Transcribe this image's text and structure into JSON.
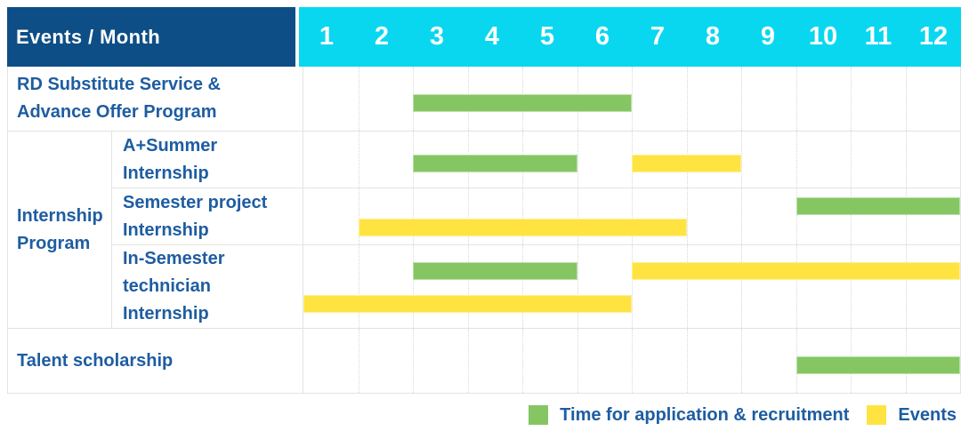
{
  "title_cell": "Events / Month",
  "colors": {
    "header_bg": "#0E4E86",
    "month_header_bg": "#09D7F0",
    "label_text": "#1E5DA1",
    "bar_green": "#85C663",
    "bar_yellow": "#FFE340",
    "row_line": "#E3E3E3",
    "grid_dot": "#D8D8D8"
  },
  "chart_data": {
    "type": "gantt",
    "x_unit": "Month",
    "x_ticks": [
      "1",
      "2",
      "3",
      "4",
      "5",
      "6",
      "7",
      "8",
      "9",
      "10",
      "11",
      "12"
    ],
    "x_range": [
      1,
      12
    ],
    "grid": "vertical-dotted",
    "legend_position": "bottom-right",
    "legend": [
      {
        "label": "Time for application & recruitment",
        "color": "green"
      },
      {
        "label": "Events",
        "color": "yellow"
      }
    ],
    "rows": [
      {
        "label": "RD Substitute Service & Advance Offer Program",
        "lanes": 1,
        "bars": [
          {
            "color": "green",
            "start_month": 3,
            "end_month": 6,
            "lane": 0
          }
        ]
      },
      {
        "group": "Internship Program",
        "children": [
          {
            "label": "A+Summer Internship",
            "lanes": 1,
            "bars": [
              {
                "color": "green",
                "start_month": 3,
                "end_month": 5,
                "lane": 0
              },
              {
                "color": "yellow",
                "start_month": 7,
                "end_month": 8,
                "lane": 0
              }
            ]
          },
          {
            "label": "Semester project Internship",
            "lanes": 2,
            "bars": [
              {
                "color": "green",
                "start_month": 10,
                "end_month": 12,
                "lane": 0
              },
              {
                "color": "yellow",
                "start_month": 2,
                "end_month": 7,
                "lane": 1
              }
            ]
          },
          {
            "label": "In-Semester technician Internship",
            "lanes": 2,
            "bars": [
              {
                "color": "green",
                "start_month": 3,
                "end_month": 5,
                "lane": 0
              },
              {
                "color": "yellow",
                "start_month": 7,
                "end_month": 12,
                "lane": 0
              },
              {
                "color": "yellow",
                "start_month": 1,
                "end_month": 6,
                "lane": 1
              }
            ]
          }
        ]
      },
      {
        "label": "Talent scholarship",
        "lanes": 1,
        "bars": [
          {
            "color": "green",
            "start_month": 10,
            "end_month": 12,
            "lane": 0
          }
        ]
      }
    ]
  }
}
